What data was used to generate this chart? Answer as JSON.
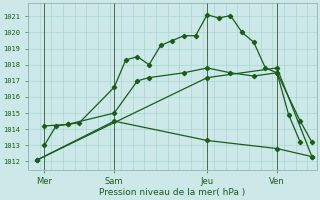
{
  "bg_color": "#cce8e8",
  "grid_color": "#aad4d4",
  "line_color": "#1a5c1a",
  "xlabel": "Pression niveau de la mer( hPa )",
  "ylim": [
    1011.5,
    1021.8
  ],
  "xlim": [
    -0.2,
    12.2
  ],
  "yticks": [
    1012,
    1013,
    1014,
    1015,
    1016,
    1017,
    1018,
    1019,
    1020,
    1021
  ],
  "xtick_labels": [
    "Mer",
    "Sam",
    "Jeu",
    "Ven"
  ],
  "xtick_positions": [
    0.5,
    3.5,
    7.5,
    10.5
  ],
  "vline_positions": [
    0.5,
    3.5,
    7.5,
    10.5
  ],
  "line1": {
    "x": [
      0.5,
      1.0,
      1.5,
      2.0,
      3.5,
      4.0,
      4.5,
      5.0,
      5.5,
      6.0,
      6.5,
      7.0,
      7.5,
      8.0,
      8.5,
      9.0,
      9.5,
      10.0,
      10.5,
      11.0,
      11.5
    ],
    "y": [
      1013.0,
      1014.2,
      1014.3,
      1014.4,
      1016.6,
      1018.3,
      1018.5,
      1018.0,
      1019.2,
      1019.5,
      1019.8,
      1019.8,
      1021.1,
      1020.9,
      1021.05,
      1020.0,
      1019.4,
      1017.8,
      1017.5,
      1014.9,
      1013.2
    ]
  },
  "line2": {
    "x": [
      0.5,
      1.5,
      3.5,
      4.5,
      5.0,
      6.5,
      7.5,
      8.5,
      9.5,
      10.5,
      11.5,
      12.0
    ],
    "y": [
      1014.2,
      1014.3,
      1015.0,
      1017.0,
      1017.2,
      1017.5,
      1017.8,
      1017.5,
      1017.3,
      1017.5,
      1014.5,
      1013.2
    ]
  },
  "line3": {
    "x": [
      0.2,
      7.5,
      10.5,
      12.0
    ],
    "y": [
      1012.1,
      1017.2,
      1017.8,
      1012.3
    ]
  },
  "line4": {
    "x": [
      0.2,
      3.5,
      7.5,
      10.5,
      12.0
    ],
    "y": [
      1012.1,
      1014.5,
      1013.3,
      1012.8,
      1012.3
    ]
  }
}
